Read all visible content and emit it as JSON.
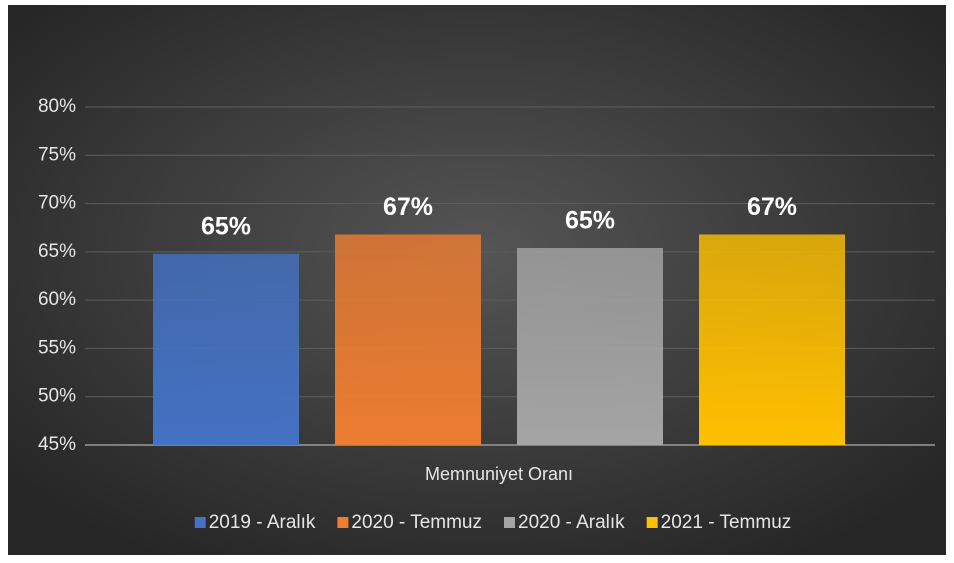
{
  "chart_data": {
    "type": "bar",
    "categories": [
      "Memnuniyet Oranı"
    ],
    "series": [
      {
        "name": "2019 - Aralık",
        "color": "#4472c4",
        "values": [
          64.8
        ],
        "value_labels": [
          "65%"
        ]
      },
      {
        "name": "2020 - Temmuz",
        "color": "#ed7d31",
        "values": [
          66.8
        ],
        "value_labels": [
          "67%"
        ]
      },
      {
        "name": "2020 - Aralık",
        "color": "#a5a5a5",
        "values": [
          65.4
        ],
        "value_labels": [
          "65%"
        ]
      },
      {
        "name": "2021 - Temmuz",
        "color": "#ffc000",
        "values": [
          66.8
        ],
        "value_labels": [
          "67%"
        ]
      }
    ],
    "ylim": [
      45,
      80
    ],
    "yticks": [
      {
        "value": 45,
        "label": "45%"
      },
      {
        "value": 50,
        "label": "50%"
      },
      {
        "value": 55,
        "label": "55%"
      },
      {
        "value": 60,
        "label": "60%"
      },
      {
        "value": 65,
        "label": "65%"
      },
      {
        "value": 70,
        "label": "70%"
      },
      {
        "value": 75,
        "label": "75%"
      },
      {
        "value": 80,
        "label": "80%"
      }
    ],
    "grid": true,
    "legend": "bottom"
  }
}
